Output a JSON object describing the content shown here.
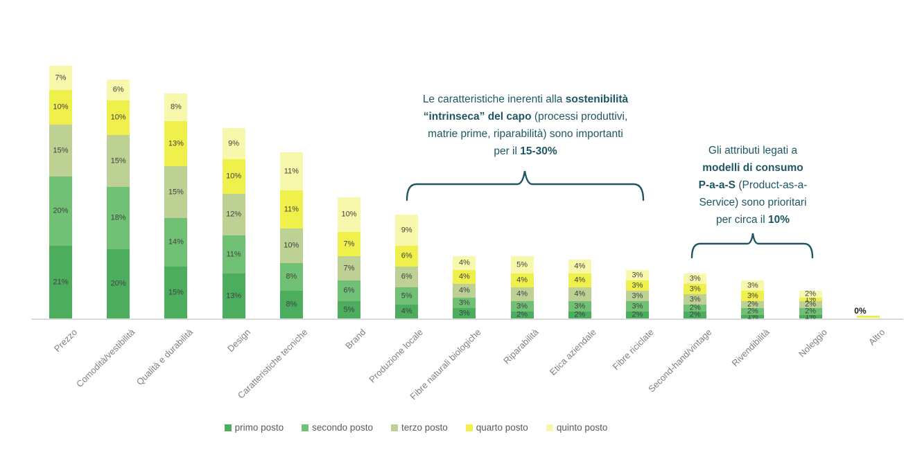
{
  "chart_data": {
    "type": "bar",
    "stacked": true,
    "unit": "%",
    "grid": false,
    "y_axis_visible": false,
    "legend_position": "bottom",
    "categories": [
      "Prezzo",
      "Comodità/vestibilità",
      "Qualità e durabilità",
      "Design",
      "Caratteristiche tecniche",
      "Brand",
      "Produzione locale",
      "Fibre naturali biologiche",
      "Riparabilità",
      "Etica aziendale",
      "Fibre riciclate",
      "Second-hand/vintage",
      "Rivendibilità",
      "Noleggio",
      "Altro"
    ],
    "series": [
      {
        "name": "primo posto",
        "color": "#4cad5e",
        "values": [
          21,
          20,
          15,
          13,
          8,
          5,
          4,
          3,
          2,
          2,
          2,
          2,
          1,
          1,
          0
        ]
      },
      {
        "name": "secondo posto",
        "color": "#70c175",
        "values": [
          20,
          18,
          14,
          11,
          8,
          6,
          5,
          3,
          3,
          3,
          3,
          2,
          2,
          2,
          0
        ]
      },
      {
        "name": "terzo posto",
        "color": "#bcd193",
        "values": [
          15,
          15,
          15,
          12,
          10,
          7,
          6,
          4,
          4,
          4,
          3,
          3,
          2,
          2,
          0
        ]
      },
      {
        "name": "quarto posto",
        "color": "#eff04b",
        "values": [
          10,
          10,
          13,
          10,
          11,
          7,
          6,
          4,
          4,
          4,
          3,
          3,
          3,
          1,
          0
        ]
      },
      {
        "name": "quinto posto",
        "color": "#f7f8ab",
        "values": [
          7,
          6,
          8,
          9,
          11,
          10,
          9,
          4,
          5,
          4,
          3,
          3,
          3,
          2,
          0
        ]
      }
    ],
    "zero_label": "0%"
  },
  "annotations": {
    "sustainability": {
      "lines": [
        [
          {
            "t": "Le caratteristiche inerenti alla ",
            "b": false
          },
          {
            "t": "sostenibilità",
            "b": true
          }
        ],
        [
          {
            "t": "“intrinseca” del capo",
            "b": true
          },
          {
            "t": " (processi produttivi,",
            "b": false
          }
        ],
        [
          {
            "t": "matrie prime, riparabilità) sono importanti",
            "b": false
          }
        ],
        [
          {
            "t": "per il ",
            "b": false
          },
          {
            "t": "15-30%",
            "b": true
          }
        ]
      ]
    },
    "paas": {
      "lines": [
        [
          {
            "t": "Gli attributi legati a",
            "b": false
          }
        ],
        [
          {
            "t": "modelli di consumo",
            "b": true
          }
        ],
        [
          {
            "t": "P-a-a-S",
            "b": true
          },
          {
            "t": " (Product-as-a-",
            "b": false
          }
        ],
        [
          {
            "t": "Service) sono prioritari",
            "b": false
          }
        ],
        [
          {
            "t": "per circa il ",
            "b": false
          },
          {
            "t": "10%",
            "b": true
          }
        ]
      ]
    }
  },
  "colors": {
    "annotation_text": "#1e5663",
    "brace": "#1e5663",
    "axis_line": "#d9d9d9",
    "data_label": "#404040",
    "axis_label": "#808080",
    "legend_label": "#595959"
  }
}
